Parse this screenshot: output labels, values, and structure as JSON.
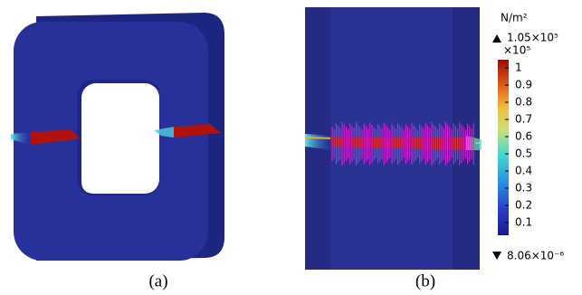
{
  "panels": [
    {
      "label": "(a)"
    },
    {
      "label": "(b)"
    }
  ],
  "colorbar": {
    "unit": "N/m²",
    "max": "1.05×10⁵",
    "multiplier": "×10⁵",
    "min": "8.06×10⁻⁶",
    "ticks": [
      1,
      0.9,
      0.8,
      0.7,
      0.6,
      0.5,
      0.4,
      0.3,
      0.2,
      0.1
    ]
  }
}
